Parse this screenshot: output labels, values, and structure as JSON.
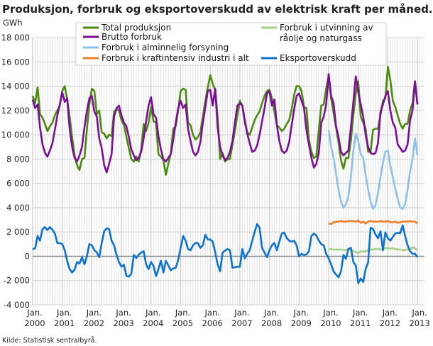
{
  "title": "Produksjon, forbruk og eksportoverskudd av elektrisk kraft per måned. GWh",
  "source": "Kilde: Statistisk sentralbyrå.",
  "chart_data": {
    "type": "line",
    "title": "Produksjon, forbruk og eksportoverskudd av elektrisk kraft per måned. GWh",
    "ylabel": "GWh",
    "xlabel": "",
    "ylim": [
      -4000,
      18000
    ],
    "yticks": [
      18000,
      16000,
      14000,
      12000,
      10000,
      8000,
      6000,
      4000,
      2000,
      0,
      -2000,
      -4000
    ],
    "ytick_labels": [
      "18 000",
      "16 000",
      "14 000",
      "12 000",
      "10 000",
      "8 000",
      "6 000",
      "4 000",
      "2 000",
      "0",
      "-2 000",
      "-4 000"
    ],
    "x_start": "2000-01",
    "x_end": "2013-01",
    "x_frequency": "monthly",
    "xtick_labels": [
      {
        "top": "Jan.",
        "bottom": "2000"
      },
      {
        "top": "Jan.",
        "bottom": "2001"
      },
      {
        "top": "Jan.",
        "bottom": "2002"
      },
      {
        "top": "Jan.",
        "bottom": "2003"
      },
      {
        "top": "Jan.",
        "bottom": "2004"
      },
      {
        "top": "Jan.",
        "bottom": "2005"
      },
      {
        "top": "Jan.",
        "bottom": "2006"
      },
      {
        "top": "Jan.",
        "bottom": "2007"
      },
      {
        "top": "Jan.",
        "bottom": "2008"
      },
      {
        "top": "Jan.",
        "bottom": "2009"
      },
      {
        "top": "Jan.",
        "bottom": "2010"
      },
      {
        "top": "Jan.",
        "bottom": "2011"
      },
      {
        "top": "Jan.",
        "bottom": "2012"
      },
      {
        "top": "Jan.",
        "bottom": "2013"
      }
    ],
    "grid": true,
    "legend": "top",
    "series": [
      {
        "name": "Total produksjon",
        "color": "#4a8a0e",
        "start": "2000-01",
        "values": [
          13200,
          12600,
          13900,
          11700,
          11400,
          10900,
          10300,
          10700,
          11000,
          11600,
          12000,
          12400,
          13600,
          14000,
          12900,
          11500,
          9800,
          8300,
          7500,
          7100,
          8000,
          8100,
          10500,
          12500,
          13800,
          13600,
          11700,
          12000,
          10200,
          10100,
          9700,
          10000,
          9900,
          11900,
          12100,
          12000,
          11200,
          10800,
          9800,
          8900,
          8000,
          7800,
          8200,
          7800,
          8800,
          10900,
          10300,
          11000,
          12300,
          11100,
          11000,
          8400,
          8200,
          7900,
          6700,
          7600,
          8500,
          10500,
          10700,
          12000,
          13600,
          13800,
          13700,
          11000,
          10800,
          10000,
          9600,
          9800,
          10200,
          11500,
          12800,
          13900,
          14900,
          14200,
          13700,
          11500,
          8000,
          8500,
          7800,
          8000,
          8000,
          9200,
          10300,
          11600,
          12800,
          12400,
          11000,
          10200,
          10000,
          10600,
          11200,
          11600,
          11900,
          12600,
          13200,
          13600,
          13700,
          13000,
          11900,
          10800,
          10600,
          10300,
          10500,
          10900,
          11200,
          12100,
          13300,
          14000,
          14000,
          13600,
          12300,
          12200,
          9600,
          8600,
          8100,
          8200,
          10400,
          12400,
          12500,
          13800,
          14800,
          13000,
          11800,
          10600,
          9400,
          7900,
          7200,
          8100,
          8100,
          9500,
          11600,
          13400,
          14400,
          11500,
          11000,
          10500,
          8600,
          8600,
          10400,
          10500,
          10500,
          11600,
          12800,
          13000,
          15600,
          14500,
          12800,
          12300,
          11600,
          10900,
          10500,
          10900,
          10900,
          12000,
          12600,
          14400,
          12500
        ]
      },
      {
        "name": "Brutto forbruk",
        "color": "#7b0e96",
        "start": "2000-01",
        "values": [
          12900,
          12200,
          12500,
          10600,
          9200,
          8500,
          8200,
          8700,
          9300,
          10400,
          11600,
          12500,
          13500,
          12700,
          13000,
          10500,
          9000,
          8100,
          7800,
          8300,
          9000,
          10600,
          12000,
          13000,
          13200,
          11900,
          11500,
          9700,
          8900,
          7500,
          6900,
          7600,
          8400,
          11500,
          12200,
          12400,
          11600,
          11000,
          10700,
          9800,
          8800,
          8300,
          7900,
          8100,
          8600,
          9700,
          11100,
          12400,
          13100,
          11700,
          11400,
          9900,
          8800,
          8000,
          7800,
          8100,
          8400,
          9600,
          11000,
          12200,
          12800,
          12200,
          12500,
          10500,
          9500,
          8600,
          8300,
          8600,
          9400,
          11000,
          12300,
          13600,
          13700,
          12400,
          13800,
          10600,
          9000,
          8300,
          7900,
          8100,
          8600,
          9500,
          11000,
          12400,
          12600,
          12400,
          11200,
          10100,
          9300,
          8600,
          8700,
          9100,
          10000,
          11100,
          12200,
          13400,
          13600,
          12400,
          12900,
          10800,
          9500,
          8700,
          8500,
          8700,
          9400,
          10800,
          12100,
          13200,
          13400,
          12800,
          12200,
          10400,
          9200,
          8100,
          7300,
          7600,
          8500,
          11000,
          11500,
          12500,
          15000,
          13200,
          12600,
          10700,
          9800,
          8600,
          8300,
          8500,
          8700,
          10600,
          12700,
          14800,
          13500,
          12500,
          11500,
          10000,
          9000,
          8500,
          8400,
          8500,
          9300,
          11900,
          12500,
          13200,
          13600,
          12000,
          11000,
          10600,
          9200,
          8900,
          8600,
          8700,
          9200,
          11200,
          12000,
          14400,
          12500
        ]
      },
      {
        "name": "Forbruk i alminnelig forsyning",
        "color": "#8dc1ea",
        "start": "2010-01",
        "values": [
          10400,
          9000,
          8100,
          6800,
          5500,
          4500,
          4000,
          4300,
          4900,
          6500,
          8700,
          10100,
          9500,
          8400,
          8100,
          6700,
          5500,
          4500,
          3900,
          4200,
          5200,
          6500,
          7700,
          8600,
          8700,
          7500,
          6500,
          5600,
          4700,
          4000,
          3900,
          4300,
          5500,
          7000,
          8000,
          9700,
          8300
        ]
      },
      {
        "name": "Forbruk i kraftintensiv industri i alt",
        "color": "#f07d27",
        "start": "2010-01",
        "values": [
          2700,
          2650,
          2800,
          2850,
          2850,
          2900,
          2850,
          2850,
          2900,
          2900,
          2900,
          2850,
          2950,
          2750,
          2850,
          2700,
          2850,
          2900,
          2850,
          2850,
          2850,
          2900,
          2850,
          2850,
          2900,
          2800,
          2800,
          2850,
          2750,
          2800,
          2850,
          2850,
          2850,
          2900,
          2850,
          2850,
          2700
        ]
      },
      {
        "name": "Forbruk i utvinning av råolje og naturgass",
        "name_line1": "Forbruk i utvinning av",
        "name_line2": "råolje og naturgass",
        "color": "#a4cf84",
        "start": "2010-01",
        "values": [
          600,
          580,
          550,
          560,
          550,
          550,
          520,
          500,
          560,
          520,
          440,
          350,
          280,
          400,
          400,
          400,
          500,
          560,
          560,
          600,
          600,
          560,
          600,
          680,
          650,
          640,
          650,
          600,
          560,
          560,
          500,
          500,
          560,
          550,
          750,
          650,
          500
        ]
      },
      {
        "name": "Eksportoverskudd",
        "color": "#0e72cf",
        "start": "2000-01",
        "values": [
          600,
          650,
          1670,
          1280,
          2250,
          2400,
          2150,
          2400,
          2200,
          1870,
          1090,
          1090,
          1000,
          500,
          -400,
          -1050,
          -1340,
          -1100,
          -470,
          -600,
          -80,
          -660,
          20,
          1000,
          900,
          500,
          310,
          -80,
          1090,
          2060,
          2300,
          2250,
          1280,
          900,
          120,
          -470,
          -860,
          -700,
          -1630,
          -1670,
          -1440,
          120,
          -150,
          120,
          310,
          410,
          -660,
          -1050,
          -470,
          -800,
          -1630,
          -1050,
          -370,
          -1340,
          -370,
          -750,
          -1150,
          -1000,
          -950,
          -300,
          700,
          1670,
          1280,
          600,
          500,
          900,
          1090,
          1090,
          700,
          900,
          1770,
          1380,
          1380,
          1200,
          310,
          -660,
          -1240,
          310,
          470,
          600,
          500,
          -950,
          -900,
          -860,
          -860,
          600,
          -170,
          200,
          500,
          1280,
          2000,
          2650,
          2350,
          700,
          300,
          -80,
          500,
          900,
          1100,
          500,
          1200,
          1870,
          1960,
          1500,
          1280,
          1200,
          1280,
          900,
          0,
          200,
          100,
          150,
          400,
          1670,
          1870,
          1700,
          1300,
          1000,
          900,
          200,
          -170,
          -660,
          -1240,
          -1500,
          -1730,
          -1240,
          120,
          -200,
          600,
          700,
          -470,
          -760,
          -2220,
          -1830,
          -2120,
          -1050,
          -500,
          2350,
          2250,
          1800,
          1480,
          2060,
          500,
          1960,
          1500,
          1280,
          1600,
          1870,
          1930,
          1900,
          2550,
          1670,
          900,
          410,
          210,
          210,
          -80
        ]
      }
    ]
  }
}
